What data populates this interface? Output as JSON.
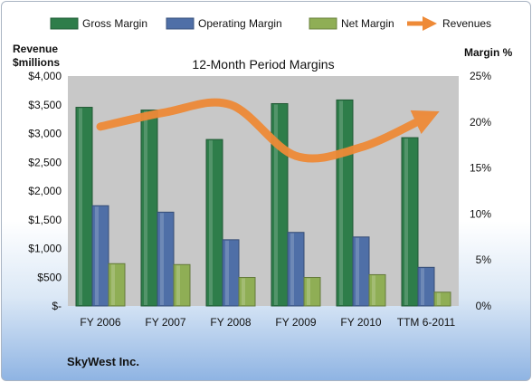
{
  "colors": {
    "gross": "#2e7d4a",
    "operating": "#4f6fa7",
    "net": "#8fae55",
    "revenues": "#ee8a37",
    "plot_bg": "#c8c8c8"
  },
  "footer": {
    "company": "SkyWest Inc."
  },
  "chart_data": {
    "type": "bar",
    "title": "12-Month Period Margins",
    "ylabel_left": [
      "Revenue",
      "$millions"
    ],
    "ylabel_right": "Margin %",
    "categories": [
      "FY 2006",
      "FY 2007",
      "FY 2008",
      "FY 2009",
      "FY 2010",
      "TTM 6-2011"
    ],
    "left_axis": {
      "ylim": [
        0,
        4000
      ],
      "ticks": [
        0,
        500,
        1000,
        1500,
        2000,
        2500,
        3000,
        3500,
        4000
      ],
      "tick_labels": [
        "$-",
        "$500",
        "$1,000",
        "$1,500",
        "$2,000",
        "$2,500",
        "$3,000",
        "$3,500",
        "$4,000"
      ]
    },
    "right_axis": {
      "ylim": [
        0,
        25
      ],
      "ticks": [
        0,
        5,
        10,
        15,
        20,
        25
      ],
      "tick_labels": [
        "0%",
        "5%",
        "10%",
        "15%",
        "20%",
        "25%"
      ]
    },
    "series": [
      {
        "name": "Gross Margin",
        "axis": "right",
        "kind": "bar",
        "color_key": "gross",
        "values": [
          21.6,
          21.3,
          18.1,
          22.0,
          22.4,
          18.3
        ]
      },
      {
        "name": "Operating Margin",
        "axis": "right",
        "kind": "bar",
        "color_key": "operating",
        "values": [
          10.9,
          10.2,
          7.2,
          8.0,
          7.5,
          4.2
        ]
      },
      {
        "name": "Net Margin",
        "axis": "right",
        "kind": "bar",
        "color_key": "net",
        "values": [
          4.6,
          4.5,
          3.1,
          3.1,
          3.4,
          1.5
        ]
      },
      {
        "name": "Revenues",
        "axis": "left",
        "kind": "line",
        "color_key": "revenues",
        "values": [
          3120,
          3370,
          3500,
          2610,
          2760,
          3280
        ]
      }
    ],
    "grid": false,
    "legend_position": "top"
  }
}
